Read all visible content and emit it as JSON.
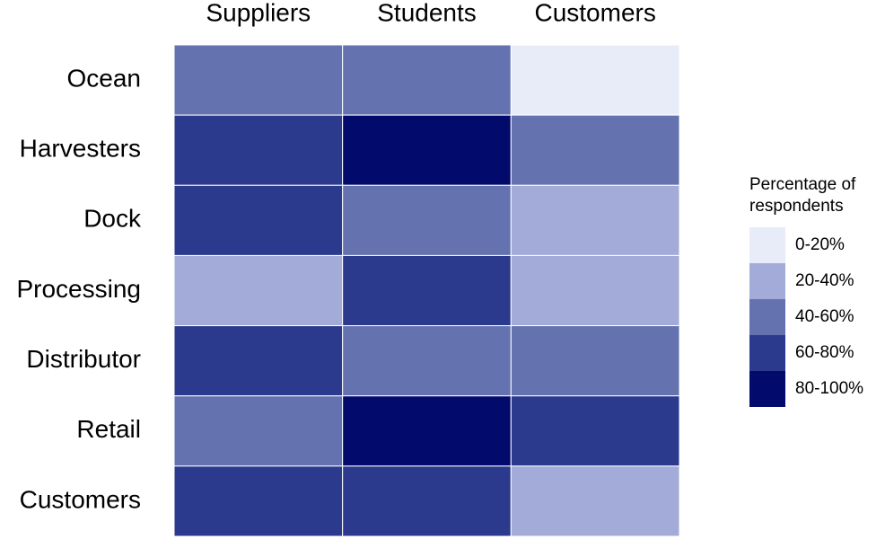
{
  "chart_data": {
    "type": "heatmap",
    "columns": [
      "Suppliers",
      "Students",
      "Customers"
    ],
    "rows": [
      "Ocean",
      "Harvesters",
      "Dock",
      "Processing",
      "Distributor",
      "Retail",
      "Customers"
    ],
    "values": [
      [
        50,
        50,
        10
      ],
      [
        70,
        90,
        50
      ],
      [
        70,
        50,
        30
      ],
      [
        30,
        70,
        30
      ],
      [
        70,
        50,
        50
      ],
      [
        50,
        90,
        70
      ],
      [
        70,
        70,
        30
      ]
    ],
    "legend_title": [
      "Percentage of",
      "respondents"
    ],
    "legend": [
      {
        "label": "0-20%",
        "min": 0,
        "max": 20,
        "color": "#e8ecf8"
      },
      {
        "label": "20-40%",
        "min": 20,
        "max": 40,
        "color": "#a3acd9"
      },
      {
        "label": "40-60%",
        "min": 40,
        "max": 60,
        "color": "#6572b0"
      },
      {
        "label": "60-80%",
        "min": 60,
        "max": 80,
        "color": "#2b3a8c"
      },
      {
        "label": "80-100%",
        "min": 80,
        "max": 100,
        "color": "#020b6b"
      }
    ]
  }
}
